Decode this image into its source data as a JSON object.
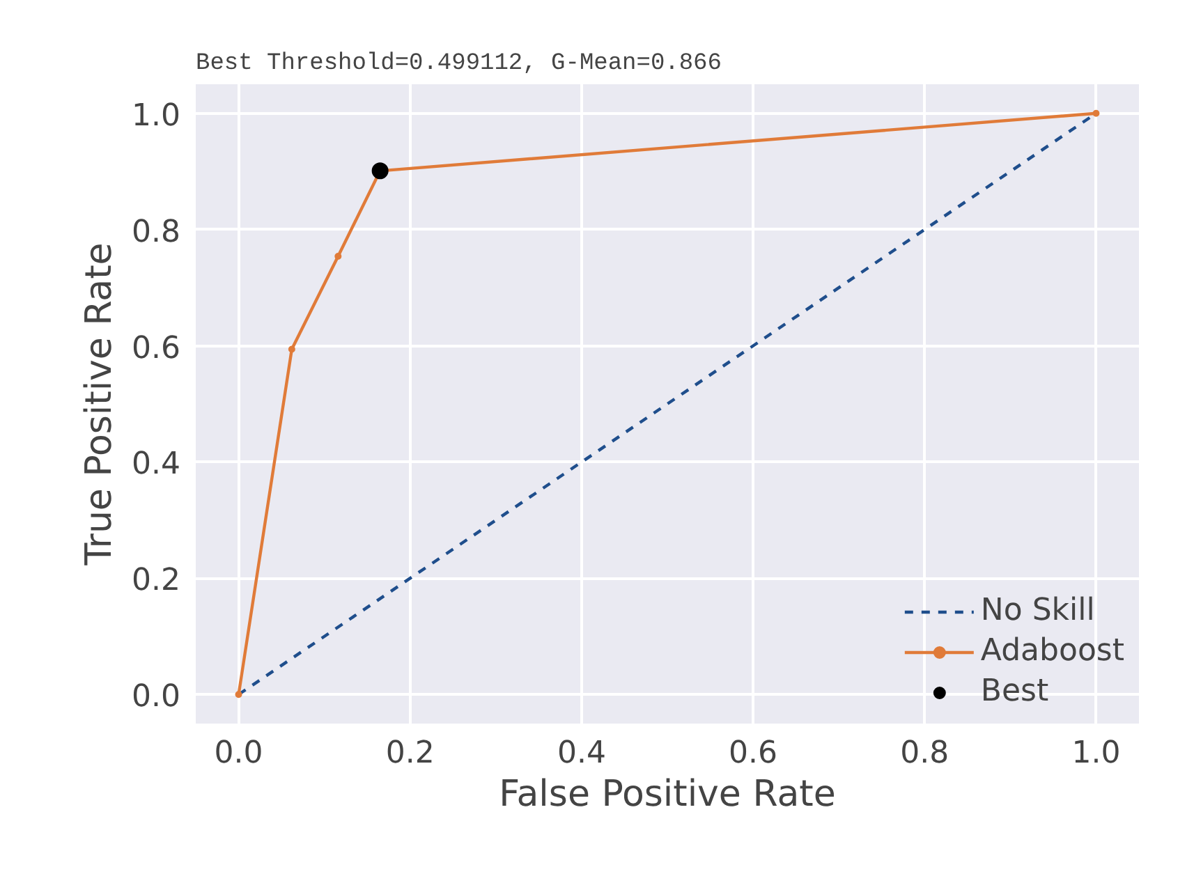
{
  "chart_data": {
    "type": "line",
    "title": "Best Threshold=0.499112, G-Mean=0.866",
    "xlabel": "False Positive Rate",
    "ylabel": "True Positive Rate",
    "xlim": [
      -0.05,
      1.05
    ],
    "ylim": [
      -0.05,
      1.05
    ],
    "xticks": [
      {
        "value": 0,
        "label": "0.0"
      },
      0.2,
      0.4,
      0.6,
      0.8,
      {
        "value": 1,
        "label": "1.0"
      }
    ],
    "yticks": [
      {
        "value": 0,
        "label": "0.0"
      },
      0.2,
      0.4,
      0.6,
      0.8,
      {
        "value": 1,
        "label": "1.0"
      }
    ],
    "grid": true,
    "legend": "bottom right",
    "series": [
      {
        "name": "No Skill",
        "color": "#1f4e8c",
        "line_style": "dashed",
        "marker": "none",
        "x": [
          0,
          1
        ],
        "values": [
          0,
          1
        ]
      },
      {
        "name": "Adaboost",
        "color": "#e07b39",
        "line_style": "solid",
        "marker": "circle",
        "x": [
          0,
          0.062,
          0.116,
          0.165,
          1
        ],
        "values": [
          0,
          0.594,
          0.754,
          0.901,
          1
        ]
      },
      {
        "name": "Best",
        "type": "scatter",
        "color": "#000000",
        "marker": "circle",
        "x": [
          0.165
        ],
        "values": [
          0.901
        ]
      }
    ]
  }
}
